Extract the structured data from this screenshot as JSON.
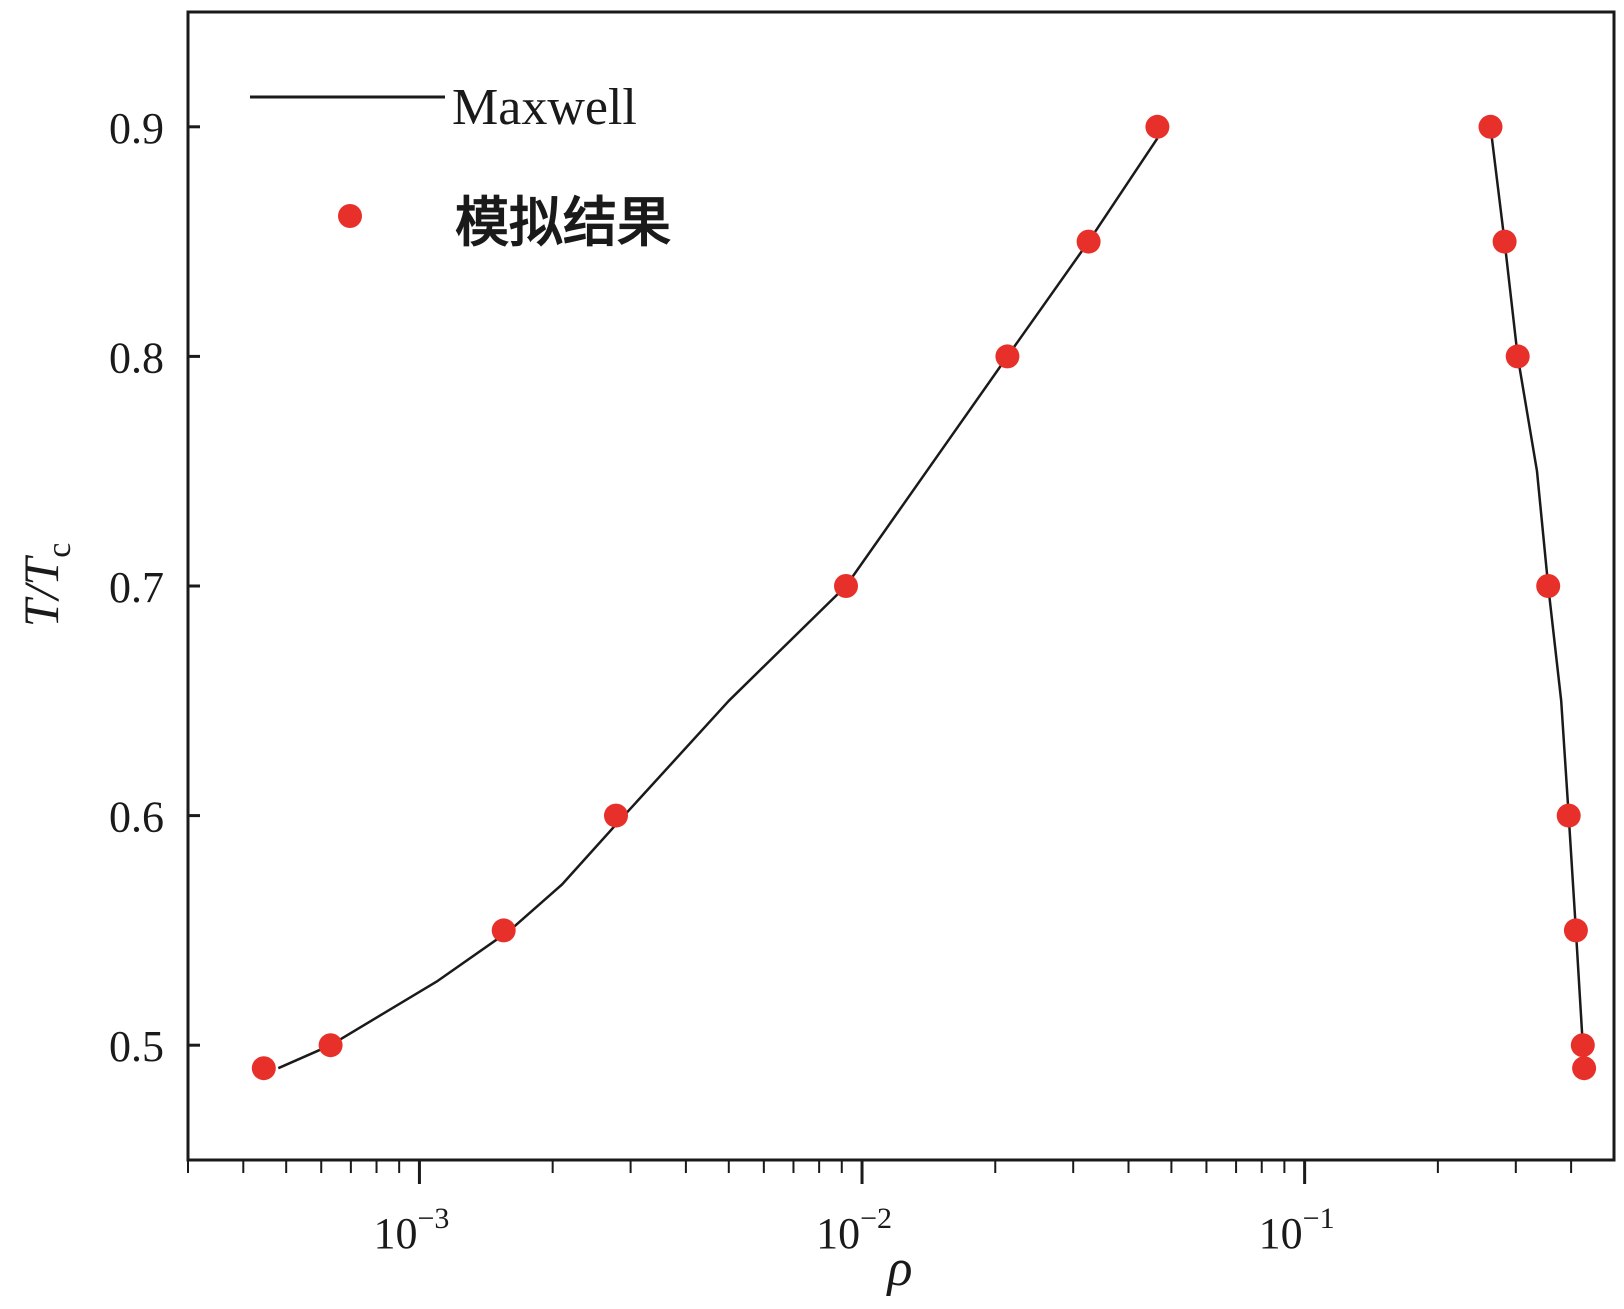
{
  "chart_data": {
    "type": "line",
    "x_scale": "log",
    "xlim": [
      0.0003,
      0.5
    ],
    "ylim": [
      0.45,
      0.95
    ],
    "grid": false,
    "xlabel": "ρ",
    "ylabel": {
      "main": "T/T",
      "sub": "c"
    },
    "x_ticks": [
      {
        "value": 0.001,
        "base": "10",
        "exp": "−3"
      },
      {
        "value": 0.01,
        "base": "10",
        "exp": "−2"
      },
      {
        "value": 0.1,
        "base": "10",
        "exp": "−1"
      }
    ],
    "y_ticks": [
      {
        "value": 0.5,
        "label": "0.5"
      },
      {
        "value": 0.6,
        "label": "0.6"
      },
      {
        "value": 0.7,
        "label": "0.7"
      },
      {
        "value": 0.8,
        "label": "0.8"
      },
      {
        "value": 0.9,
        "label": "0.9"
      }
    ],
    "legend": {
      "position": "top-left",
      "entries": [
        "Maxwell",
        "模拟结果"
      ]
    },
    "series": [
      {
        "name": "Maxwell",
        "kind": "line",
        "color": "#1a1a1a",
        "branches": [
          [
            {
              "x": 0.00048,
              "y": 0.49
            },
            {
              "x": 0.00063,
              "y": 0.5
            },
            {
              "x": 0.0011,
              "y": 0.528
            },
            {
              "x": 0.0016,
              "y": 0.55
            },
            {
              "x": 0.0021,
              "y": 0.57
            },
            {
              "x": 0.0029,
              "y": 0.6
            },
            {
              "x": 0.005,
              "y": 0.65
            },
            {
              "x": 0.0092,
              "y": 0.7
            },
            {
              "x": 0.014,
              "y": 0.75
            },
            {
              "x": 0.0213,
              "y": 0.8
            },
            {
              "x": 0.0325,
              "y": 0.85
            },
            {
              "x": 0.0465,
              "y": 0.895
            }
          ],
          [
            {
              "x": 0.263,
              "y": 0.9
            },
            {
              "x": 0.283,
              "y": 0.85
            },
            {
              "x": 0.303,
              "y": 0.8
            },
            {
              "x": 0.335,
              "y": 0.75
            },
            {
              "x": 0.355,
              "y": 0.7
            },
            {
              "x": 0.38,
              "y": 0.65
            },
            {
              "x": 0.395,
              "y": 0.6
            },
            {
              "x": 0.41,
              "y": 0.55
            },
            {
              "x": 0.425,
              "y": 0.5
            }
          ]
        ]
      },
      {
        "name": "模拟结果",
        "kind": "scatter",
        "color": "#e8302a",
        "points": [
          {
            "x": 0.000445,
            "y": 0.49
          },
          {
            "x": 0.00063,
            "y": 0.5
          },
          {
            "x": 0.00155,
            "y": 0.55
          },
          {
            "x": 0.00278,
            "y": 0.6
          },
          {
            "x": 0.0092,
            "y": 0.7
          },
          {
            "x": 0.0213,
            "y": 0.8
          },
          {
            "x": 0.0325,
            "y": 0.85
          },
          {
            "x": 0.0465,
            "y": 0.9
          },
          {
            "x": 0.263,
            "y": 0.9
          },
          {
            "x": 0.283,
            "y": 0.85
          },
          {
            "x": 0.303,
            "y": 0.8
          },
          {
            "x": 0.355,
            "y": 0.7
          },
          {
            "x": 0.395,
            "y": 0.6
          },
          {
            "x": 0.41,
            "y": 0.55
          },
          {
            "x": 0.425,
            "y": 0.5
          },
          {
            "x": 0.428,
            "y": 0.49
          }
        ]
      }
    ]
  }
}
